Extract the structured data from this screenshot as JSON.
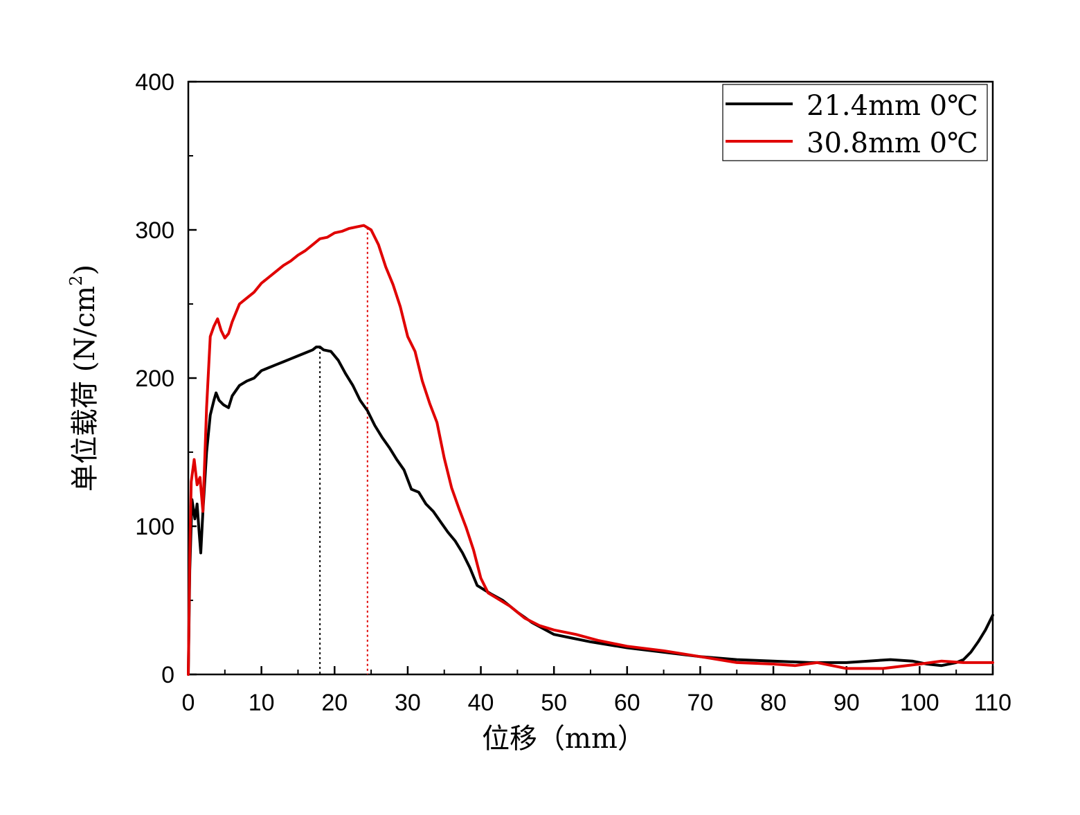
{
  "chart_data": {
    "type": "line",
    "xlabel": "位移（mm）",
    "ylabel": "单位载荷 (N/cm²)",
    "ylabel_main": "单位载荷 (N/cm",
    "ylabel_sup": "2",
    "ylabel_close": ")",
    "xlim": [
      0,
      110
    ],
    "ylim": [
      0,
      400
    ],
    "x_ticks": [
      0,
      10,
      20,
      30,
      40,
      50,
      60,
      70,
      80,
      90,
      100,
      110
    ],
    "y_ticks": [
      0,
      100,
      200,
      300,
      400
    ],
    "legend_position": "top-right",
    "grid": false,
    "series": [
      {
        "name": "21.4mm 0℃",
        "color": "#000000",
        "peak_x": 18,
        "points": [
          [
            0,
            0
          ],
          [
            0.2,
            70
          ],
          [
            0.5,
            118
          ],
          [
            0.9,
            105
          ],
          [
            1.2,
            115
          ],
          [
            1.5,
            95
          ],
          [
            1.7,
            82
          ],
          [
            2,
            110
          ],
          [
            2.5,
            150
          ],
          [
            3,
            175
          ],
          [
            3.5,
            185
          ],
          [
            3.8,
            190
          ],
          [
            4.2,
            185
          ],
          [
            4.8,
            182
          ],
          [
            5.5,
            180
          ],
          [
            6,
            188
          ],
          [
            7,
            195
          ],
          [
            8,
            198
          ],
          [
            9,
            200
          ],
          [
            10,
            205
          ],
          [
            11,
            207
          ],
          [
            12,
            209
          ],
          [
            13,
            211
          ],
          [
            14,
            213
          ],
          [
            15,
            215
          ],
          [
            16,
            217
          ],
          [
            17,
            219
          ],
          [
            17.5,
            221
          ],
          [
            18,
            221
          ],
          [
            18.5,
            219
          ],
          [
            19.5,
            218
          ],
          [
            20.5,
            212
          ],
          [
            21.5,
            203
          ],
          [
            22.5,
            195
          ],
          [
            23.5,
            185
          ],
          [
            24.5,
            178
          ],
          [
            25.5,
            168
          ],
          [
            26.5,
            160
          ],
          [
            27.5,
            153
          ],
          [
            28.5,
            145
          ],
          [
            29.5,
            138
          ],
          [
            30.5,
            125
          ],
          [
            31.5,
            123
          ],
          [
            32.5,
            115
          ],
          [
            33.5,
            110
          ],
          [
            34.5,
            103
          ],
          [
            35.5,
            96
          ],
          [
            36.5,
            90
          ],
          [
            37.5,
            82
          ],
          [
            38.5,
            72
          ],
          [
            39.5,
            60
          ],
          [
            40.5,
            57
          ],
          [
            41.5,
            54
          ],
          [
            43,
            50
          ],
          [
            45,
            42
          ],
          [
            47,
            35
          ],
          [
            50,
            27
          ],
          [
            52,
            25
          ],
          [
            55,
            22
          ],
          [
            60,
            18
          ],
          [
            65,
            15
          ],
          [
            70,
            12
          ],
          [
            75,
            10
          ],
          [
            80,
            9
          ],
          [
            85,
            8
          ],
          [
            90,
            8
          ],
          [
            93,
            9
          ],
          [
            96,
            10
          ],
          [
            99,
            9
          ],
          [
            101,
            7
          ],
          [
            103,
            6
          ],
          [
            105,
            8
          ],
          [
            106,
            10
          ],
          [
            107,
            15
          ],
          [
            108,
            22
          ],
          [
            109,
            30
          ],
          [
            110,
            40
          ]
        ]
      },
      {
        "name": "30.8mm 0℃",
        "color": "#e00000",
        "peak_x": 24.5,
        "points": [
          [
            0,
            0
          ],
          [
            0.2,
            80
          ],
          [
            0.4,
            130
          ],
          [
            0.8,
            145
          ],
          [
            1.2,
            128
          ],
          [
            1.6,
            133
          ],
          [
            2,
            110
          ],
          [
            2.5,
            180
          ],
          [
            3,
            228
          ],
          [
            3.5,
            235
          ],
          [
            4,
            240
          ],
          [
            4.5,
            232
          ],
          [
            5,
            227
          ],
          [
            5.5,
            230
          ],
          [
            6,
            238
          ],
          [
            7,
            250
          ],
          [
            8,
            254
          ],
          [
            9,
            258
          ],
          [
            10,
            264
          ],
          [
            11,
            268
          ],
          [
            12,
            272
          ],
          [
            13,
            276
          ],
          [
            14,
            279
          ],
          [
            15,
            283
          ],
          [
            16,
            286
          ],
          [
            17,
            290
          ],
          [
            18,
            294
          ],
          [
            19,
            295
          ],
          [
            20,
            298
          ],
          [
            21,
            299
          ],
          [
            22,
            301
          ],
          [
            23,
            302
          ],
          [
            24,
            303
          ],
          [
            25,
            300
          ],
          [
            26,
            290
          ],
          [
            27,
            275
          ],
          [
            28,
            263
          ],
          [
            29,
            248
          ],
          [
            30,
            228
          ],
          [
            31,
            218
          ],
          [
            32,
            198
          ],
          [
            33,
            183
          ],
          [
            34,
            170
          ],
          [
            35,
            146
          ],
          [
            36,
            126
          ],
          [
            37,
            112
          ],
          [
            38,
            99
          ],
          [
            39,
            84
          ],
          [
            40,
            65
          ],
          [
            41,
            55
          ],
          [
            42,
            52
          ],
          [
            44,
            46
          ],
          [
            46,
            38
          ],
          [
            48,
            33
          ],
          [
            50,
            30
          ],
          [
            53,
            27
          ],
          [
            56,
            23
          ],
          [
            60,
            19
          ],
          [
            65,
            16
          ],
          [
            70,
            12
          ],
          [
            75,
            8
          ],
          [
            80,
            7
          ],
          [
            83,
            6
          ],
          [
            86,
            8
          ],
          [
            88,
            6
          ],
          [
            90,
            4
          ],
          [
            95,
            4
          ],
          [
            100,
            7
          ],
          [
            103,
            9
          ],
          [
            106,
            8
          ],
          [
            110,
            8
          ]
        ]
      }
    ]
  }
}
